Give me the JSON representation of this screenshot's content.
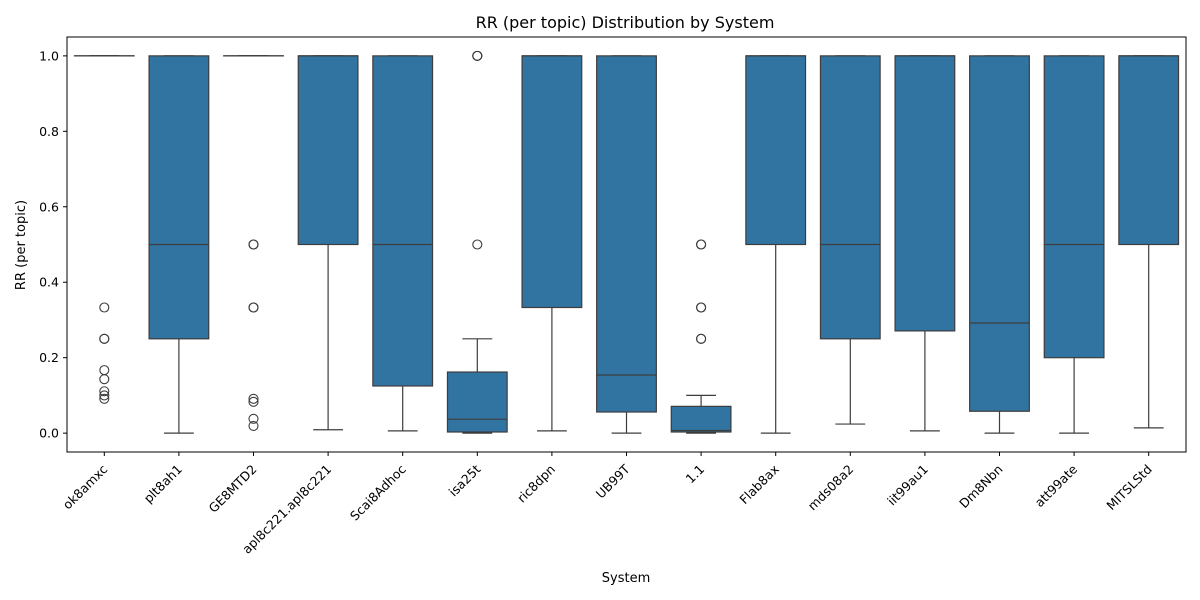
{
  "chart_data": {
    "type": "box",
    "title": "RR (per topic) Distribution by System",
    "xlabel": "System",
    "ylabel": "RR (per topic)",
    "ylim": [
      -0.05,
      1.05
    ],
    "yticks": [
      "0.0",
      "0.2",
      "0.4",
      "0.6",
      "0.8",
      "1.0"
    ],
    "grid": false,
    "legend": "none",
    "box_color": "#3274a1",
    "line_color": "#3d3d3d",
    "categories": [
      "ok8amxc",
      "plt8ah1",
      "GE8MTD2",
      "apl8c221.apl8c221",
      "Scai8Adhoc",
      "isa25t",
      "ric8dpn",
      "UB99T",
      "1.1",
      "Flab8ax",
      "mds08a2",
      "iit99au1",
      "Dm8Nbn",
      "att99ate",
      "MITSLStd"
    ],
    "boxes": [
      {
        "q1": 1.0,
        "median": 1.0,
        "q3": 1.0,
        "whislo": 1.0,
        "whishi": 1.0,
        "fliers": [
          0.333,
          0.25,
          0.25,
          0.167,
          0.143,
          0.111,
          0.1,
          0.091
        ]
      },
      {
        "q1": 0.25,
        "median": 0.5,
        "q3": 1.0,
        "whislo": 0.0,
        "whishi": 1.0,
        "fliers": []
      },
      {
        "q1": 1.0,
        "median": 1.0,
        "q3": 1.0,
        "whislo": 1.0,
        "whishi": 1.0,
        "fliers": [
          0.5,
          0.5,
          0.333,
          0.333,
          0.091,
          0.083,
          0.038,
          0.019
        ]
      },
      {
        "q1": 0.5,
        "median": 1.0,
        "q3": 1.0,
        "whislo": 0.009,
        "whishi": 1.0,
        "fliers": []
      },
      {
        "q1": 0.125,
        "median": 0.5,
        "q3": 1.0,
        "whislo": 0.006,
        "whishi": 1.0,
        "fliers": []
      },
      {
        "q1": 0.003,
        "median": 0.037,
        "q3": 0.162,
        "whislo": 0.0,
        "whishi": 0.25,
        "fliers": [
          1.0,
          1.0,
          1.0,
          0.5
        ]
      },
      {
        "q1": 0.333,
        "median": 1.0,
        "q3": 1.0,
        "whislo": 0.006,
        "whishi": 1.0,
        "fliers": []
      },
      {
        "q1": 0.056,
        "median": 0.154,
        "q3": 1.0,
        "whislo": 0.0,
        "whishi": 1.0,
        "fliers": []
      },
      {
        "q1": 0.003,
        "median": 0.007,
        "q3": 0.071,
        "whislo": 0.0,
        "whishi": 0.1,
        "fliers": [
          0.5,
          0.5,
          0.333,
          0.333,
          0.25,
          0.25
        ]
      },
      {
        "q1": 0.5,
        "median": 1.0,
        "q3": 1.0,
        "whislo": 0.0,
        "whishi": 1.0,
        "fliers": []
      },
      {
        "q1": 0.25,
        "median": 0.5,
        "q3": 1.0,
        "whislo": 0.024,
        "whishi": 1.0,
        "fliers": []
      },
      {
        "q1": 0.271,
        "median": 1.0,
        "q3": 1.0,
        "whislo": 0.006,
        "whishi": 1.0,
        "fliers": []
      },
      {
        "q1": 0.058,
        "median": 0.292,
        "q3": 1.0,
        "whislo": 0.0,
        "whishi": 1.0,
        "fliers": []
      },
      {
        "q1": 0.2,
        "median": 0.5,
        "q3": 1.0,
        "whislo": 0.0,
        "whishi": 1.0,
        "fliers": []
      },
      {
        "q1": 0.5,
        "median": 1.0,
        "q3": 1.0,
        "whislo": 0.014,
        "whishi": 1.0,
        "fliers": []
      }
    ]
  }
}
